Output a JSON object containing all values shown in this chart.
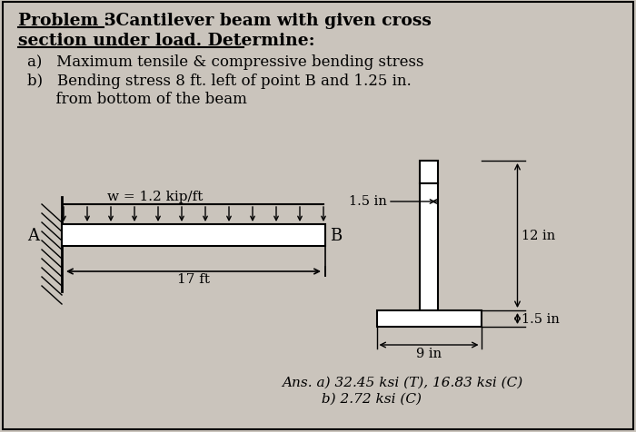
{
  "bg_color": "#cac4bc",
  "title_p3": "Problem 3",
  "title_rest1": ": Cantilever beam with given cross",
  "title_line2": "section under load. Determine:",
  "item_a": "a)   Maximum tensile & compressive bending stress",
  "item_b1": "b)   Bending stress 8 ft. left of point B and 1.25 in.",
  "item_b2": "      from bottom of the beam",
  "beam_label_w": "w = 1.2 kip/ft",
  "label_A": "A",
  "label_B": "B",
  "label_17ft": "17 ft",
  "label_15in_web": "1.5 in",
  "label_12in": "12 in",
  "label_9in": "9 in",
  "label_15in_bot": "1.5 in",
  "ans_line1": "Ans. a) 32.45 ksi (T), 16.83 ksi (C)",
  "ans_line2": "         b) 2.72 ksi (C)"
}
